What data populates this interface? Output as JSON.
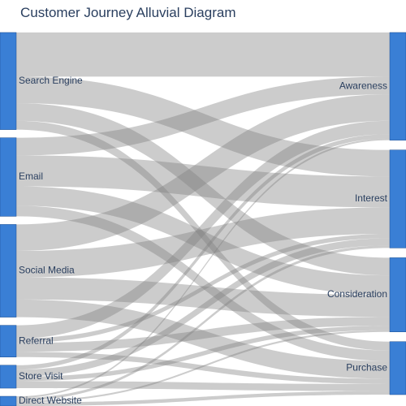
{
  "title": "Customer Journey Alluvial Diagram",
  "colors": {
    "node_fill": "#3a7fd5",
    "node_stroke": "#1f4f8f",
    "link": "rgba(128,128,128,0.4)"
  },
  "chart_data": {
    "type": "sankey",
    "sources": [
      {
        "id": "search",
        "label": "Search Engine"
      },
      {
        "id": "email",
        "label": "Email"
      },
      {
        "id": "social",
        "label": "Social Media"
      },
      {
        "id": "referral",
        "label": "Referral"
      },
      {
        "id": "store",
        "label": "Store Visit"
      },
      {
        "id": "direct",
        "label": "Direct Website"
      }
    ],
    "targets": [
      {
        "id": "awareness",
        "label": "Awareness"
      },
      {
        "id": "interest",
        "label": "Interest"
      },
      {
        "id": "consideration",
        "label": "Consideration"
      },
      {
        "id": "purchase",
        "label": "Purchase"
      }
    ],
    "flows": [
      {
        "source": "search",
        "target": "awareness",
        "value": 50
      },
      {
        "source": "search",
        "target": "interest",
        "value": 30
      },
      {
        "source": "search",
        "target": "consideration",
        "value": 20
      },
      {
        "source": "search",
        "target": "purchase",
        "value": 10
      },
      {
        "source": "email",
        "target": "awareness",
        "value": 20
      },
      {
        "source": "email",
        "target": "interest",
        "value": 35
      },
      {
        "source": "email",
        "target": "consideration",
        "value": 22
      },
      {
        "source": "email",
        "target": "purchase",
        "value": 12
      },
      {
        "source": "social",
        "target": "awareness",
        "value": 30
      },
      {
        "source": "social",
        "target": "interest",
        "value": 30
      },
      {
        "source": "social",
        "target": "consideration",
        "value": 25
      },
      {
        "source": "social",
        "target": "purchase",
        "value": 20
      },
      {
        "source": "referral",
        "target": "awareness",
        "value": 15
      },
      {
        "source": "referral",
        "target": "interest",
        "value": 5
      },
      {
        "source": "referral",
        "target": "consideration",
        "value": 10
      },
      {
        "source": "referral",
        "target": "purchase",
        "value": 6
      },
      {
        "source": "store",
        "target": "awareness",
        "value": 5
      },
      {
        "source": "store",
        "target": "interest",
        "value": 8
      },
      {
        "source": "store",
        "target": "consideration",
        "value": 5
      },
      {
        "source": "store",
        "target": "purchase",
        "value": 8
      },
      {
        "source": "direct",
        "target": "awareness",
        "value": 2
      },
      {
        "source": "direct",
        "target": "interest",
        "value": 3
      },
      {
        "source": "direct",
        "target": "consideration",
        "value": 2
      },
      {
        "source": "direct",
        "target": "purchase",
        "value": 4
      }
    ]
  }
}
